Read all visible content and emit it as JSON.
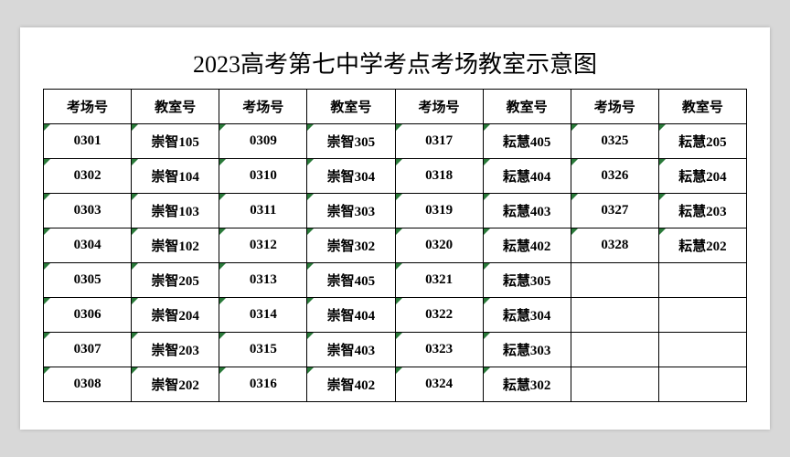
{
  "title": "2023高考第七中学考点考场教室示意图",
  "headers": [
    "考场号",
    "教室号",
    "考场号",
    "教室号",
    "考场号",
    "教室号",
    "考场号",
    "教室号"
  ],
  "rows": [
    [
      "0301",
      "崇智105",
      "0309",
      "崇智305",
      "0317",
      "耘慧405",
      "0325",
      "耘慧205"
    ],
    [
      "0302",
      "崇智104",
      "0310",
      "崇智304",
      "0318",
      "耘慧404",
      "0326",
      "耘慧204"
    ],
    [
      "0303",
      "崇智103",
      "0311",
      "崇智303",
      "0319",
      "耘慧403",
      "0327",
      "耘慧203"
    ],
    [
      "0304",
      "崇智102",
      "0312",
      "崇智302",
      "0320",
      "耘慧402",
      "0328",
      "耘慧202"
    ],
    [
      "0305",
      "崇智205",
      "0313",
      "崇智405",
      "0321",
      "耘慧305",
      "",
      ""
    ],
    [
      "0306",
      "崇智204",
      "0314",
      "崇智404",
      "0322",
      "耘慧304",
      "",
      ""
    ],
    [
      "0307",
      "崇智203",
      "0315",
      "崇智403",
      "0323",
      "耘慧303",
      "",
      ""
    ],
    [
      "0308",
      "崇智202",
      "0316",
      "崇智402",
      "0324",
      "耘慧302",
      "",
      ""
    ]
  ],
  "styling": {
    "background_color": "#d8d8d8",
    "page_color": "#ffffff",
    "border_color": "#000000",
    "text_color": "#000000",
    "corner_mark_color": "#2a7a3a",
    "title_fontsize": 26,
    "cell_fontsize": 15,
    "font_family": "SimSun"
  }
}
